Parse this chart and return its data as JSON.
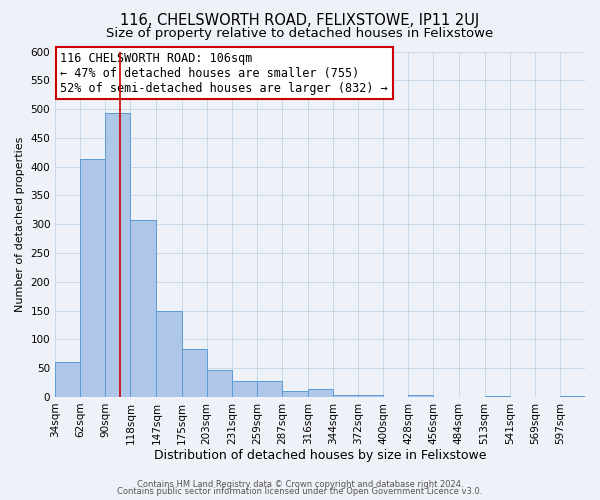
{
  "title": "116, CHELSWORTH ROAD, FELIXSTOWE, IP11 2UJ",
  "subtitle": "Size of property relative to detached houses in Felixstowe",
  "xlabel": "Distribution of detached houses by size in Felixstowe",
  "ylabel": "Number of detached properties",
  "bin_labels": [
    "34sqm",
    "62sqm",
    "90sqm",
    "118sqm",
    "147sqm",
    "175sqm",
    "203sqm",
    "231sqm",
    "259sqm",
    "287sqm",
    "316sqm",
    "344sqm",
    "372sqm",
    "400sqm",
    "428sqm",
    "456sqm",
    "484sqm",
    "513sqm",
    "541sqm",
    "569sqm",
    "597sqm"
  ],
  "bin_edges": [
    34,
    62,
    90,
    118,
    147,
    175,
    203,
    231,
    259,
    287,
    316,
    344,
    372,
    400,
    428,
    456,
    484,
    513,
    541,
    569,
    597,
    625
  ],
  "bar_heights": [
    60,
    413,
    493,
    308,
    150,
    83,
    46,
    27,
    27,
    11,
    14,
    3,
    3,
    0,
    4,
    0,
    0,
    2,
    0,
    0,
    2
  ],
  "bar_color": "#aec6e8",
  "bar_edgecolor": "#5b9bd5",
  "vertical_line_x": 106,
  "vertical_line_color": "#cc0000",
  "annotation_text_line1": "116 CHELSWORTH ROAD: 106sqm",
  "annotation_text_line2": "← 47% of detached houses are smaller (755)",
  "annotation_text_line3": "52% of semi-detached houses are larger (832) →",
  "annotation_box_edgecolor": "#cc0000",
  "annotation_box_facecolor": "#ffffff",
  "ylim": [
    0,
    600
  ],
  "yticks": [
    0,
    50,
    100,
    150,
    200,
    250,
    300,
    350,
    400,
    450,
    500,
    550,
    600
  ],
  "grid_color": "#c8d8e8",
  "background_color": "#eef2f8",
  "footer_line1": "Contains HM Land Registry data © Crown copyright and database right 2024.",
  "footer_line2": "Contains public sector information licensed under the Open Government Licence v3.0.",
  "title_fontsize": 10.5,
  "subtitle_fontsize": 9.5,
  "xlabel_fontsize": 9,
  "ylabel_fontsize": 8,
  "tick_fontsize": 7.5,
  "annotation_fontsize": 8.5,
  "footer_fontsize": 6.0
}
